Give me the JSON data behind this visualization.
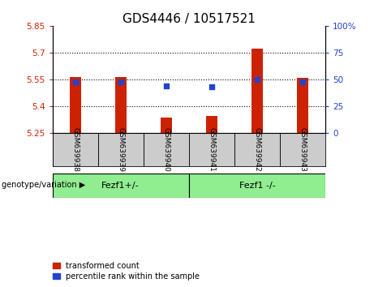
{
  "title": "GDS4446 / 10517521",
  "samples": [
    "GSM639938",
    "GSM639939",
    "GSM639940",
    "GSM639941",
    "GSM639942",
    "GSM639943"
  ],
  "red_bar_top": [
    5.565,
    5.565,
    5.335,
    5.345,
    5.72,
    5.56
  ],
  "blue_square_y": [
    5.535,
    5.535,
    5.515,
    5.508,
    5.548,
    5.535
  ],
  "baseline": 5.25,
  "ylim_left": [
    5.25,
    5.85
  ],
  "ylim_right": [
    0,
    100
  ],
  "yticks_left": [
    5.25,
    5.4,
    5.55,
    5.7,
    5.85
  ],
  "ytick_labels_left": [
    "5.25",
    "5.4",
    "5.55",
    "5.7",
    "5.85"
  ],
  "yticks_right": [
    0,
    25,
    50,
    75,
    100
  ],
  "ytick_labels_right": [
    "0",
    "25",
    "50",
    "75",
    "100%"
  ],
  "hlines": [
    5.4,
    5.55,
    5.7
  ],
  "group1_label": "Fezf1+/-",
  "group2_label": "Fezf1 -/-",
  "group1_indices": [
    0,
    1,
    2
  ],
  "group2_indices": [
    3,
    4,
    5
  ],
  "genotype_label": "genotype/variation",
  "legend_red": "transformed count",
  "legend_blue": "percentile rank within the sample",
  "red_color": "#cc2200",
  "blue_color": "#2244cc",
  "bar_width": 0.25,
  "group_bg_color": "#90ee90",
  "tick_label_bg": "#cccccc",
  "plot_bg": "#ffffff",
  "title_fontsize": 11,
  "tick_fontsize": 7.5,
  "label_fontsize": 8,
  "blue_square_size": 22
}
